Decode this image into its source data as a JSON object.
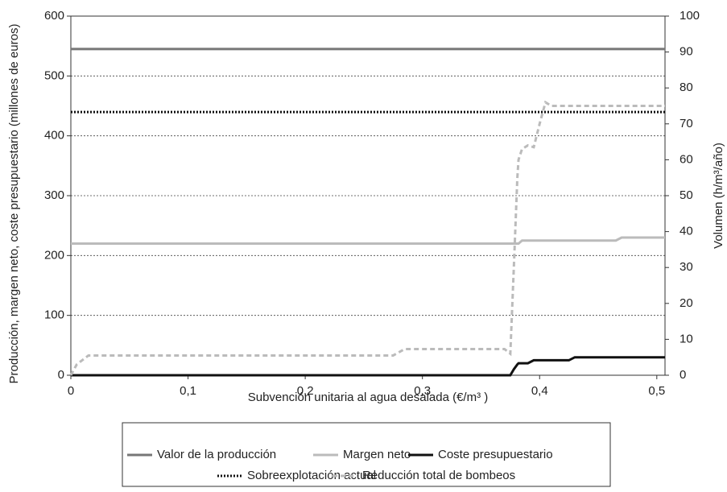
{
  "chart_data": {
    "type": "line",
    "y_label": "Producción, margen neto, coste presupuestario (millones de euros)",
    "y2_label": "Volumen (h/m³/año)",
    "x_label": "Subvención unitaria al agua desalada (€/m³ )",
    "x": [
      0,
      0.005,
      0.015,
      0.275,
      0.285,
      0.37,
      0.375,
      0.378,
      0.381,
      0.382,
      0.385,
      0.39,
      0.395,
      0.4,
      0.405,
      0.41,
      0.425,
      0.43,
      0.465,
      0.47,
      0.507
    ],
    "xlim": [
      0,
      0.507
    ],
    "xticks": [
      0,
      {
        "value": 0.1,
        "label": "0,1"
      },
      {
        "value": 0.2,
        "label": "0,2"
      },
      {
        "value": 0.3,
        "label": "0,3"
      },
      {
        "value": 0.4,
        "label": "0,4"
      },
      {
        "value": 0.5,
        "label": "0,5"
      }
    ],
    "ylim": [
      0,
      600
    ],
    "yticks": [
      0,
      100,
      200,
      300,
      400,
      500,
      600
    ],
    "y2lim": [
      0,
      100
    ],
    "y2ticks": [
      0,
      10,
      20,
      30,
      40,
      50,
      60,
      70,
      80,
      90,
      100
    ],
    "grid": true,
    "series": [
      {
        "name": "Valor de la producción",
        "color": "#777777",
        "style": "solid",
        "values": [
          545,
          545,
          545,
          545,
          545,
          545,
          545,
          545,
          545,
          545,
          545,
          545,
          545,
          545,
          545,
          545,
          545,
          545,
          545,
          545,
          545
        ]
      },
      {
        "name": "Margen neto",
        "color": "#bbbbbb",
        "style": "solid",
        "values": [
          220,
          220,
          220,
          220,
          220,
          220,
          220,
          220,
          220,
          220,
          225,
          225,
          225,
          225,
          225,
          225,
          225,
          225,
          225,
          230,
          230
        ]
      },
      {
        "name": "Coste presupuestario",
        "color": "#111111",
        "style": "solid",
        "values": [
          0,
          0,
          0,
          0,
          0,
          0,
          0,
          10,
          18,
          20,
          20,
          20,
          25,
          25,
          25,
          25,
          25,
          30,
          30,
          30,
          30
        ]
      },
      {
        "name": "Sobreexplotación actual",
        "color": "#111111",
        "style": "dotted",
        "axis": "y2",
        "values": [
          73.3,
          73.3,
          73.3,
          73.3,
          73.3,
          73.3,
          73.3,
          73.3,
          73.3,
          73.3,
          73.3,
          73.3,
          73.3,
          73.3,
          73.3,
          73.3,
          73.3,
          73.3,
          73.3,
          73.3,
          73.3
        ]
      },
      {
        "name": "Reducción total de bombeos",
        "color": "#bbbbbb",
        "style": "dashed",
        "axis": "y2",
        "values": [
          0,
          3,
          5.5,
          5.5,
          7.3,
          7.3,
          6,
          30,
          55,
          60,
          63,
          64,
          63.5,
          70,
          76,
          75,
          75,
          75,
          75,
          75,
          75
        ]
      }
    ]
  }
}
